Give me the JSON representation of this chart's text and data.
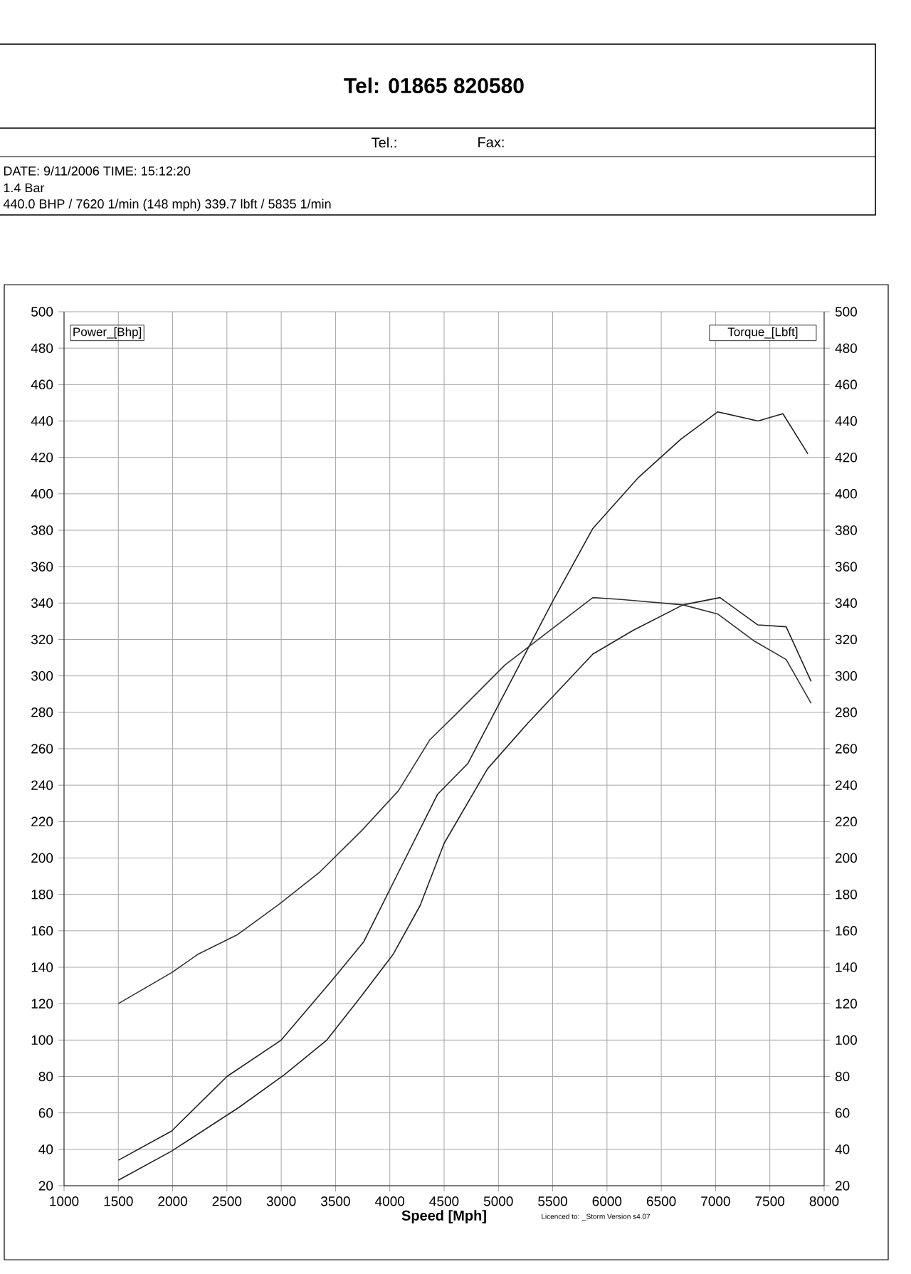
{
  "chart_data": {
    "type": "line",
    "title": "Tel: 01865 820580",
    "xlabel": "Speed  [Mph]",
    "ylabel": "Power_[Bhp]",
    "y2label": "Torque_[Lbft]",
    "annotations": [
      "Tel.:",
      "Fax:",
      "DATE: 9/11/2006  TIME: 15:12:20",
      "1.4 Bar",
      "440.0 BHP / 7620 1/min (148 mph)    339.7 lbft / 5835 1/min",
      "Licenced to: _Storm   Version s4.07"
    ],
    "series": [
      {
        "color": "#333333",
        "axis": "y2",
        "x": [
          1500,
          1990,
          2230,
          2600,
          2990,
          3350,
          3740,
          4080,
          4370,
          4610,
          5060,
          5870,
          6130,
          6700,
          7020,
          7360,
          7650,
          7880
        ],
        "values": [
          120,
          137,
          147,
          158,
          175,
          192,
          215,
          237,
          265,
          279,
          306,
          343,
          342,
          339,
          334,
          319,
          309,
          285
        ]
      },
      {
        "color": "#222222",
        "x": [
          1500,
          1990,
          2500,
          3000,
          3470,
          3760,
          4070,
          4440,
          4720,
          5500,
          5870,
          6290,
          6680,
          7020,
          7390,
          7620,
          7850
        ],
        "values": [
          34,
          50,
          80,
          100,
          133,
          154,
          191,
          235,
          252,
          341,
          381,
          409,
          430,
          445,
          440,
          444,
          422
        ]
      },
      {
        "color": "#222222",
        "x": [
          1500,
          1990,
          2610,
          3030,
          3420,
          3710,
          4030,
          4280,
          4500,
          4900,
          5270,
          5870,
          6240,
          6700,
          7040,
          7390,
          7650,
          7880
        ],
        "values": [
          23,
          39,
          63,
          81,
          100,
          122,
          147,
          174,
          208,
          249,
          274,
          312,
          325,
          339,
          343,
          328,
          327,
          297
        ]
      }
    ],
    "xlim": [
      1000,
      8000
    ],
    "ylim": [
      20,
      500
    ],
    "y2lim": [
      20,
      500
    ],
    "xticks": [
      1000,
      1500,
      2000,
      2500,
      3000,
      3500,
      4000,
      4500,
      5000,
      5500,
      6000,
      6500,
      7000,
      7500,
      8000
    ],
    "yticks": [
      20,
      40,
      60,
      80,
      100,
      120,
      140,
      160,
      180,
      200,
      220,
      240,
      260,
      280,
      300,
      320,
      340,
      360,
      380,
      400,
      420,
      440,
      460,
      480,
      500
    ],
    "y2ticks": [
      20,
      40,
      60,
      80,
      100,
      120,
      140,
      160,
      180,
      200,
      220,
      240,
      260,
      280,
      300,
      320,
      340,
      360,
      380,
      400,
      420,
      440,
      460,
      480,
      500
    ],
    "grid": true,
    "legend": false,
    "marker": "none",
    "line_style": "solid"
  }
}
